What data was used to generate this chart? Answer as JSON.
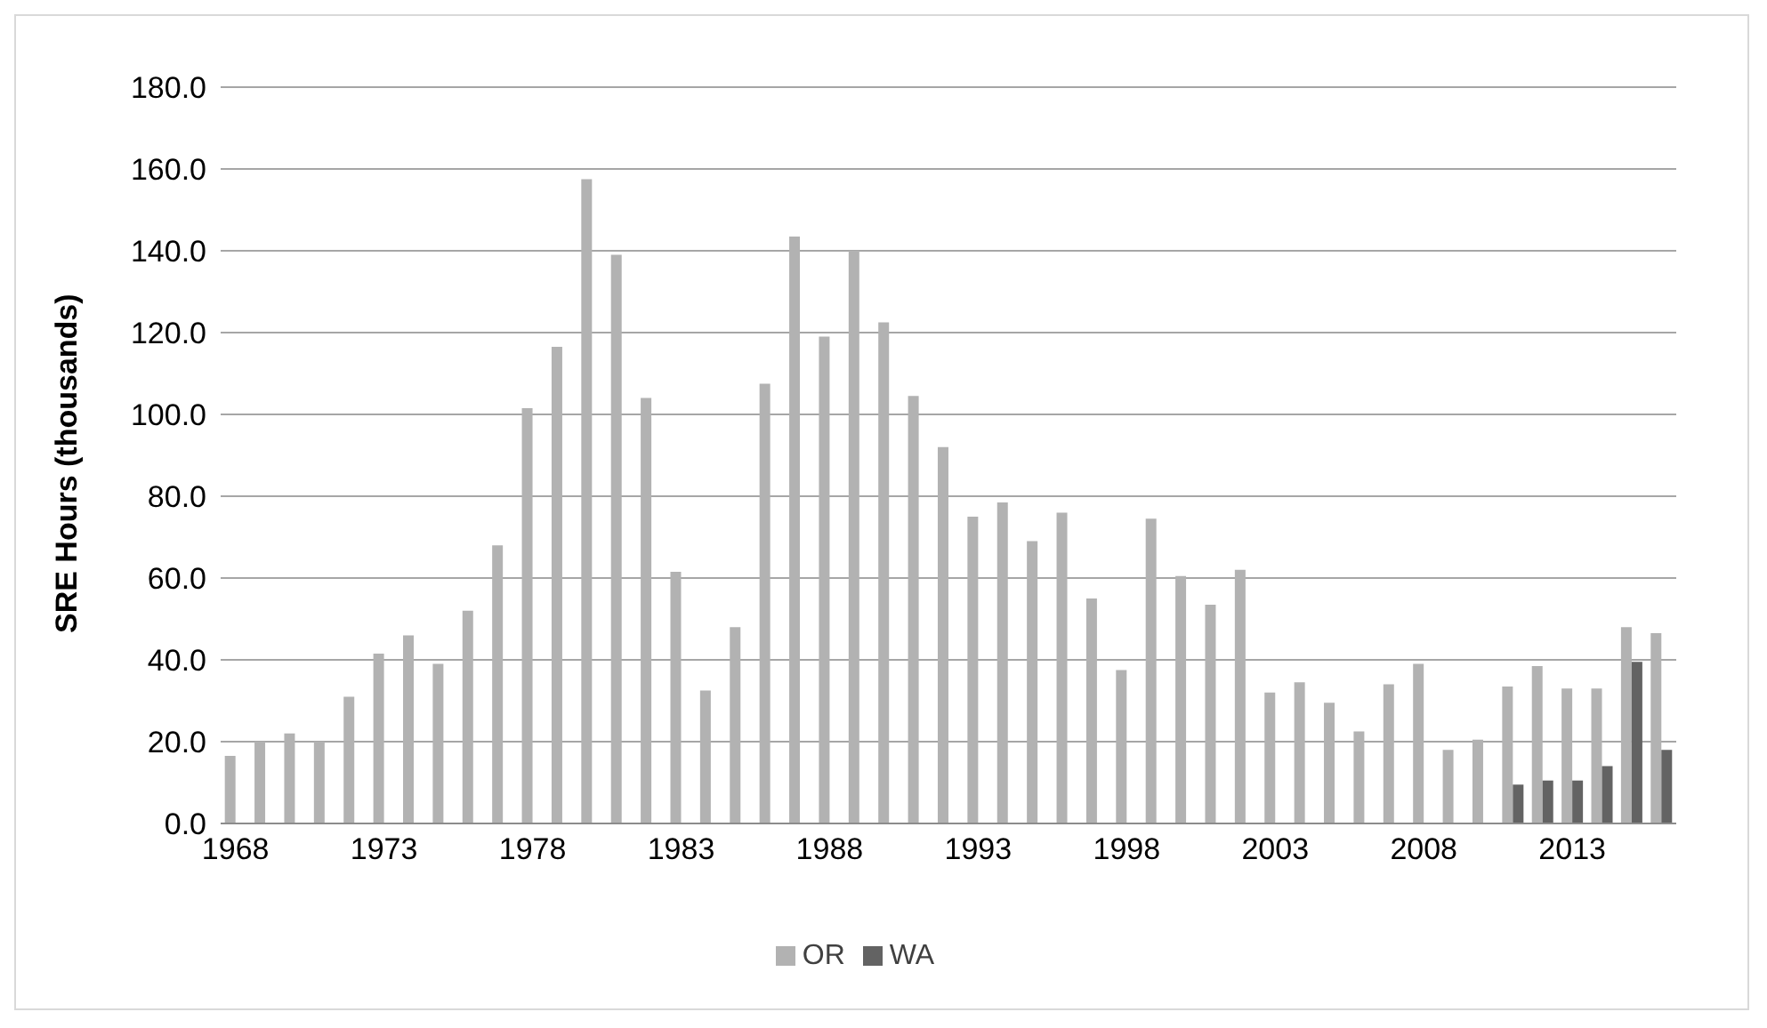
{
  "chart_data": {
    "type": "bar",
    "ylabel": "SRE Hours (thousands)",
    "categories": [
      "1968",
      null,
      null,
      null,
      null,
      "1973",
      null,
      null,
      null,
      null,
      "1978",
      null,
      null,
      null,
      null,
      "1983",
      null,
      null,
      null,
      null,
      "1988",
      null,
      null,
      null,
      null,
      "1993",
      null,
      null,
      null,
      null,
      "1998",
      null,
      null,
      null,
      null,
      "2003",
      null,
      null,
      null,
      null,
      "2008",
      null,
      null,
      null,
      null,
      "2013",
      null,
      null,
      null
    ],
    "series": [
      {
        "name": "OR",
        "color": "#b2b2b2",
        "values": [
          16.5,
          20,
          22,
          20,
          31,
          41.5,
          46,
          39,
          52,
          68,
          101.5,
          116.5,
          157.5,
          139,
          104,
          61.5,
          32.5,
          48,
          107.5,
          143.5,
          119,
          140,
          122.5,
          104.5,
          92,
          75,
          78.5,
          69,
          76,
          55,
          37.5,
          74.5,
          60.5,
          53.5,
          62,
          32,
          34.5,
          29.5,
          22.5,
          34,
          39,
          18,
          20.5,
          33.5,
          38.5,
          33,
          33,
          48,
          46.5
        ]
      },
      {
        "name": "WA",
        "color": "#636363",
        "values": [
          null,
          null,
          null,
          null,
          null,
          null,
          null,
          null,
          null,
          null,
          null,
          null,
          null,
          null,
          null,
          null,
          null,
          null,
          null,
          null,
          null,
          null,
          null,
          null,
          null,
          null,
          null,
          null,
          null,
          null,
          null,
          null,
          null,
          null,
          null,
          null,
          null,
          null,
          null,
          null,
          null,
          null,
          null,
          9.5,
          10.5,
          10.5,
          14,
          39.5,
          18
        ]
      }
    ],
    "ylim": [
      0,
      180
    ],
    "yticks": [
      {
        "value": 0,
        "label": "0.0"
      },
      {
        "value": 20,
        "label": "20.0"
      },
      {
        "value": 40,
        "label": "40.0"
      },
      {
        "value": 60,
        "label": "60.0"
      },
      {
        "value": 80,
        "label": "80.0"
      },
      {
        "value": 100,
        "label": "100.0"
      },
      {
        "value": 120,
        "label": "120.0"
      },
      {
        "value": 140,
        "label": "140.0"
      },
      {
        "value": 160,
        "label": "160.0"
      },
      {
        "value": 180,
        "label": "180.0"
      }
    ],
    "grid": "y",
    "legend": "bottom"
  }
}
